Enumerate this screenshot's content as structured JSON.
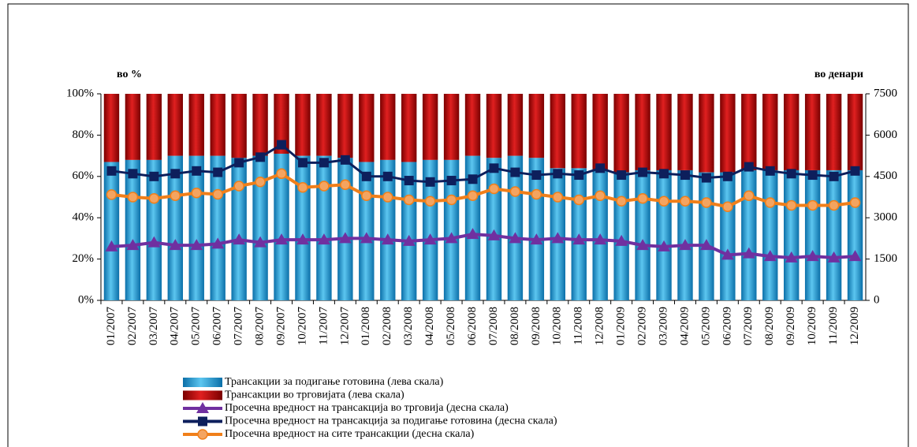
{
  "chart_data": {
    "type": "bar",
    "left_axis_title": "во %",
    "right_axis_title": "во денари",
    "categories": [
      "01/2007",
      "02/2007",
      "03/2007",
      "04/2007",
      "05/2007",
      "06/2007",
      "07/2007",
      "08/2007",
      "09/2007",
      "10/2007",
      "11/2007",
      "12/2007",
      "01/2008",
      "02/2008",
      "03/2008",
      "04/2008",
      "05/2008",
      "06/2008",
      "07/2008",
      "08/2008",
      "09/2008",
      "10/2008",
      "11/2008",
      "12/2008",
      "01/2009",
      "02/2009",
      "03/2009",
      "04/2009",
      "05/2009",
      "06/2009",
      "07/2009",
      "08/2009",
      "09/2009",
      "10/2009",
      "11/2009",
      "12/2009"
    ],
    "stacked": true,
    "series": [
      {
        "name": "Трансакции за подигање готовина (лева скала)",
        "kind": "bar",
        "color": "#2aa3d9",
        "values": [
          67,
          68,
          68,
          70,
          70,
          70,
          69,
          70,
          71,
          70,
          70,
          69,
          67,
          68,
          67,
          68,
          68,
          70,
          69,
          70,
          69,
          64,
          64,
          63,
          62,
          63,
          63,
          63,
          62,
          62,
          63,
          63,
          63,
          63,
          63,
          63
        ]
      },
      {
        "name": "Трансакции во трговијата (лева скала)",
        "kind": "bar",
        "color": "#c00000",
        "values": [
          33,
          32,
          32,
          30,
          30,
          30,
          31,
          30,
          29,
          30,
          30,
          31,
          33,
          32,
          33,
          32,
          32,
          30,
          31,
          30,
          31,
          36,
          36,
          37,
          38,
          37,
          37,
          37,
          38,
          38,
          37,
          37,
          37,
          37,
          37,
          37
        ]
      },
      {
        "name": "Просечна вредност на трансакција во трговија (десна скала)",
        "kind": "line",
        "marker": "triangle",
        "axis": "y2",
        "color": "#7030a0",
        "values": [
          1950,
          2000,
          2100,
          2000,
          2000,
          2050,
          2200,
          2100,
          2200,
          2200,
          2200,
          2250,
          2250,
          2200,
          2150,
          2200,
          2250,
          2400,
          2350,
          2250,
          2200,
          2250,
          2200,
          2200,
          2150,
          2000,
          1950,
          2000,
          2000,
          1650,
          1700,
          1600,
          1550,
          1600,
          1550,
          1600
        ]
      },
      {
        "name": "Просечна вредност на трансакција за подигање готовина (десна скала)",
        "kind": "line",
        "marker": "square",
        "axis": "y2",
        "color": "#0d1f5c",
        "values": [
          4700,
          4600,
          4500,
          4600,
          4700,
          4650,
          5000,
          5200,
          5650,
          5000,
          5000,
          5100,
          4500,
          4500,
          4350,
          4300,
          4350,
          4400,
          4800,
          4650,
          4550,
          4600,
          4550,
          4800,
          4550,
          4650,
          4600,
          4550,
          4450,
          4500,
          4850,
          4700,
          4600,
          4550,
          4500,
          4700
        ]
      },
      {
        "name": "Просечна вредност на сите трансакции (десна скала)",
        "kind": "line",
        "marker": "circle",
        "axis": "y2",
        "color": "#f07f1a",
        "values": [
          3840,
          3750,
          3700,
          3800,
          3900,
          3850,
          4150,
          4300,
          4600,
          4100,
          4150,
          4200,
          3800,
          3750,
          3650,
          3600,
          3650,
          3800,
          4050,
          3950,
          3850,
          3750,
          3650,
          3800,
          3600,
          3700,
          3600,
          3600,
          3550,
          3400,
          3800,
          3550,
          3450,
          3450,
          3450,
          3550
        ]
      }
    ],
    "ylim": [
      0,
      100
    ],
    "yticks": [
      {
        "value": 0,
        "label": "0%"
      },
      {
        "value": 20,
        "label": "20%"
      },
      {
        "value": 40,
        "label": "40%"
      },
      {
        "value": 60,
        "label": "60%"
      },
      {
        "value": 80,
        "label": "80%"
      },
      {
        "value": 100,
        "label": "100%"
      }
    ],
    "y2lim": [
      0,
      7500
    ],
    "y2ticks": [
      0,
      1500,
      3000,
      4500,
      6000,
      7500
    ]
  }
}
